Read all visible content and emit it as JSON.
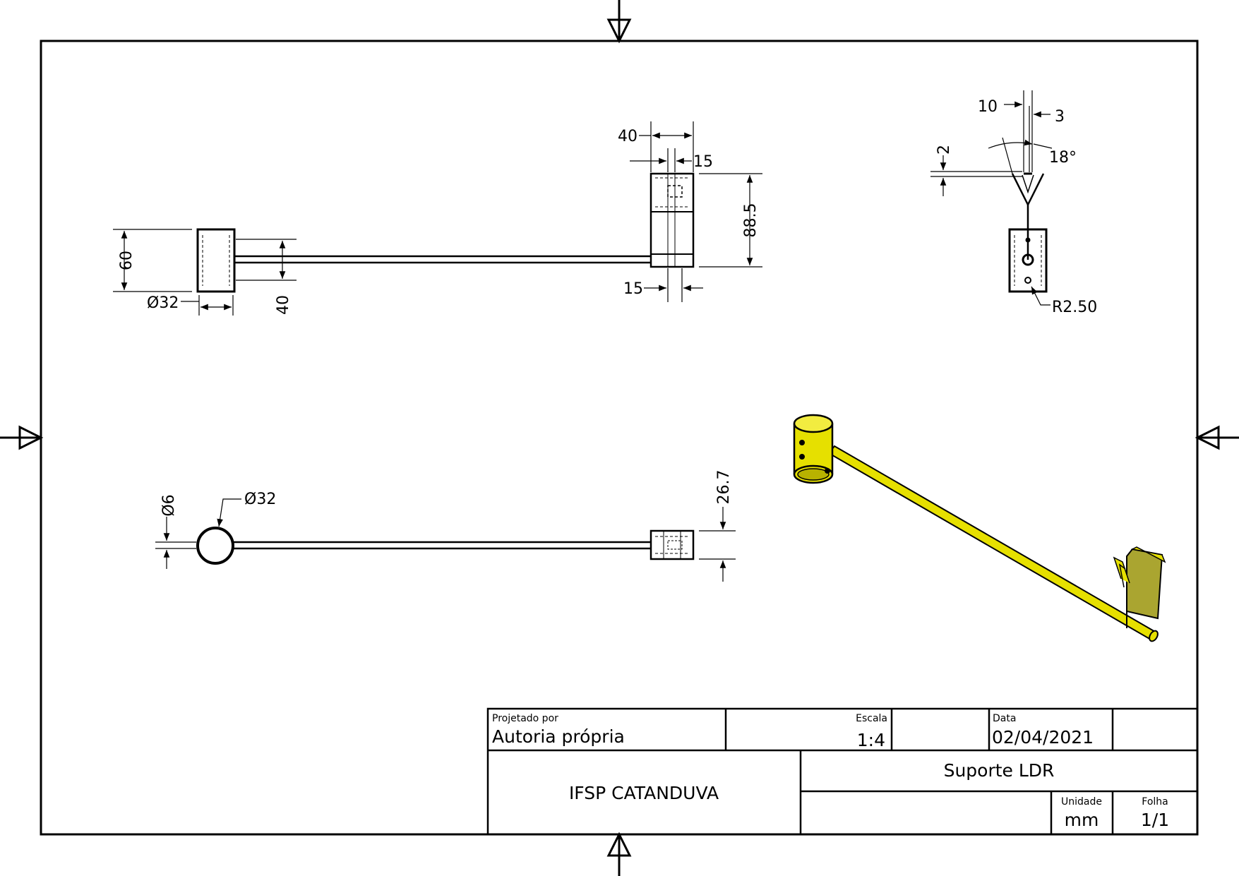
{
  "colors": {
    "line": "#000000",
    "part_yellow": "#e6e000",
    "part_yellow_dark": "#b8b200",
    "part_olive": "#aaa530"
  },
  "title_block": {
    "designed_by_label": "Projetado por",
    "designed_by": "Autoria própria",
    "scale_label": "Escala",
    "scale": "1:4",
    "date_label": "Data",
    "date": "02/04/2021",
    "institution": "IFSP CATANDUVA",
    "title": "Suporte LDR",
    "unit_label": "Unidade",
    "unit": "mm",
    "sheet_label": "Folha",
    "sheet": "1/1"
  },
  "dimensions": {
    "front_view": {
      "width_top": "40",
      "offset_top": "15",
      "height_right": "88.5",
      "offset_bottom": "15",
      "cylinder_height": "60",
      "cylinder_diameter": "Ø32",
      "rod_span": "40"
    },
    "side_view": {
      "width_left": "10",
      "width_right": "3",
      "thickness": "2",
      "angle": "18°",
      "radius": "R2.50"
    },
    "top_view": {
      "rod_diameter": "Ø6",
      "cylinder_diameter": "Ø32",
      "clip_height": "26.7"
    }
  }
}
